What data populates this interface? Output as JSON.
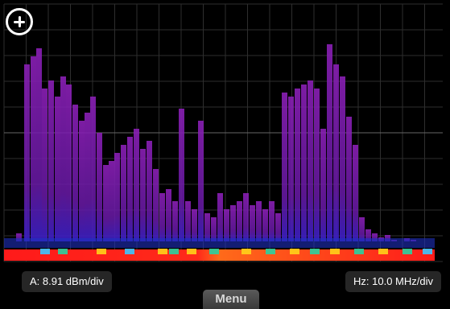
{
  "toolbar": {
    "add_icon": "plus-circle-icon"
  },
  "readouts": {
    "amplitude_scale": "A: 8.91 dBm/div",
    "frequency_scale": "Hz: 10.0 MHz/div"
  },
  "menu": {
    "label": "Menu"
  },
  "colors": {
    "background": "#000000",
    "grid": "#3a3a3a",
    "peak_trace": "#8a1fb5",
    "noise_floor": "#ff1a1a",
    "readout_bg": "#262626"
  }
}
